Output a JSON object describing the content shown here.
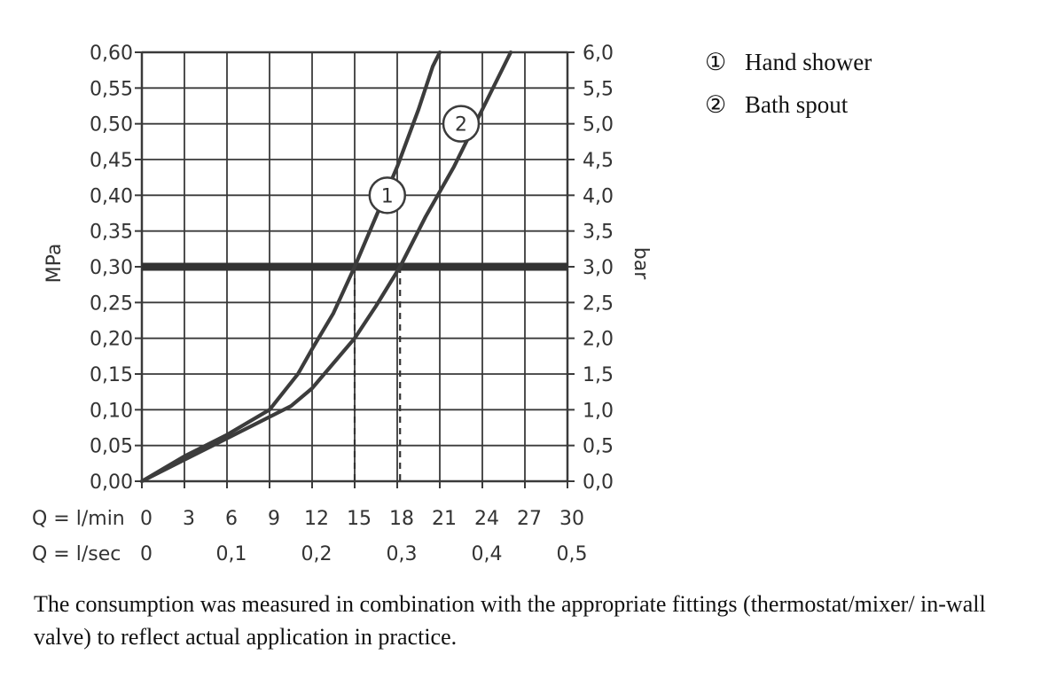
{
  "chart_data": {
    "type": "line",
    "x": {
      "label_lmin": "Q = l/min",
      "label_lsec": "Q = l/sec",
      "range": [
        0,
        30
      ],
      "ticks_lmin": [
        "0",
        "3",
        "6",
        "9",
        "12",
        "15",
        "18",
        "21",
        "24",
        "27",
        "30"
      ],
      "ticks_lsec": [
        "0",
        "0,1",
        "0,2",
        "0,3",
        "0,4",
        "0,5"
      ],
      "ticks_lsec_values": [
        0,
        6,
        12,
        18,
        24,
        30
      ]
    },
    "y_left": {
      "label": "MPa",
      "range": [
        0,
        0.6
      ],
      "ticks": [
        "0,00",
        "0,05",
        "0,10",
        "0,15",
        "0,20",
        "0,25",
        "0,30",
        "0,35",
        "0,40",
        "0,45",
        "0,50",
        "0,55",
        "0,60"
      ]
    },
    "y_right": {
      "label": "bar",
      "ticks": [
        "0,0",
        "0,5",
        "1,0",
        "1,5",
        "2,0",
        "2,5",
        "3,0",
        "3,5",
        "4,0",
        "4,5",
        "5,0",
        "5,5",
        "6,0"
      ]
    },
    "grid": true,
    "reference_line": {
      "y": 0.3
    },
    "dashed_markers": [
      15,
      18.2
    ],
    "series": [
      {
        "name": "Hand shower",
        "marker": "1",
        "x": [
          0,
          3,
          6,
          9,
          11,
          12,
          13.5,
          15,
          16.5,
          18,
          19.5,
          20.5,
          21
        ],
        "y": [
          0,
          0.035,
          0.065,
          0.1,
          0.15,
          0.185,
          0.235,
          0.3,
          0.37,
          0.44,
          0.52,
          0.58,
          0.6
        ]
      },
      {
        "name": "Bath spout",
        "marker": "2",
        "x": [
          0,
          3,
          6,
          9,
          10.5,
          12,
          13.5,
          15,
          16.5,
          18.2,
          20,
          22,
          24,
          26
        ],
        "y": [
          0,
          0.03,
          0.06,
          0.09,
          0.105,
          0.13,
          0.165,
          0.2,
          0.245,
          0.3,
          0.37,
          0.44,
          0.52,
          0.6
        ]
      }
    ],
    "legend": {
      "placement": "top-right",
      "items": [
        {
          "marker": "①",
          "label": "Hand shower"
        },
        {
          "marker": "②",
          "label": "Bath spout"
        }
      ]
    },
    "note": "The consumption was measured in combination with the appropriate fittings (thermostat/mixer/ in-wall valve) to reflect actual application in practice."
  }
}
